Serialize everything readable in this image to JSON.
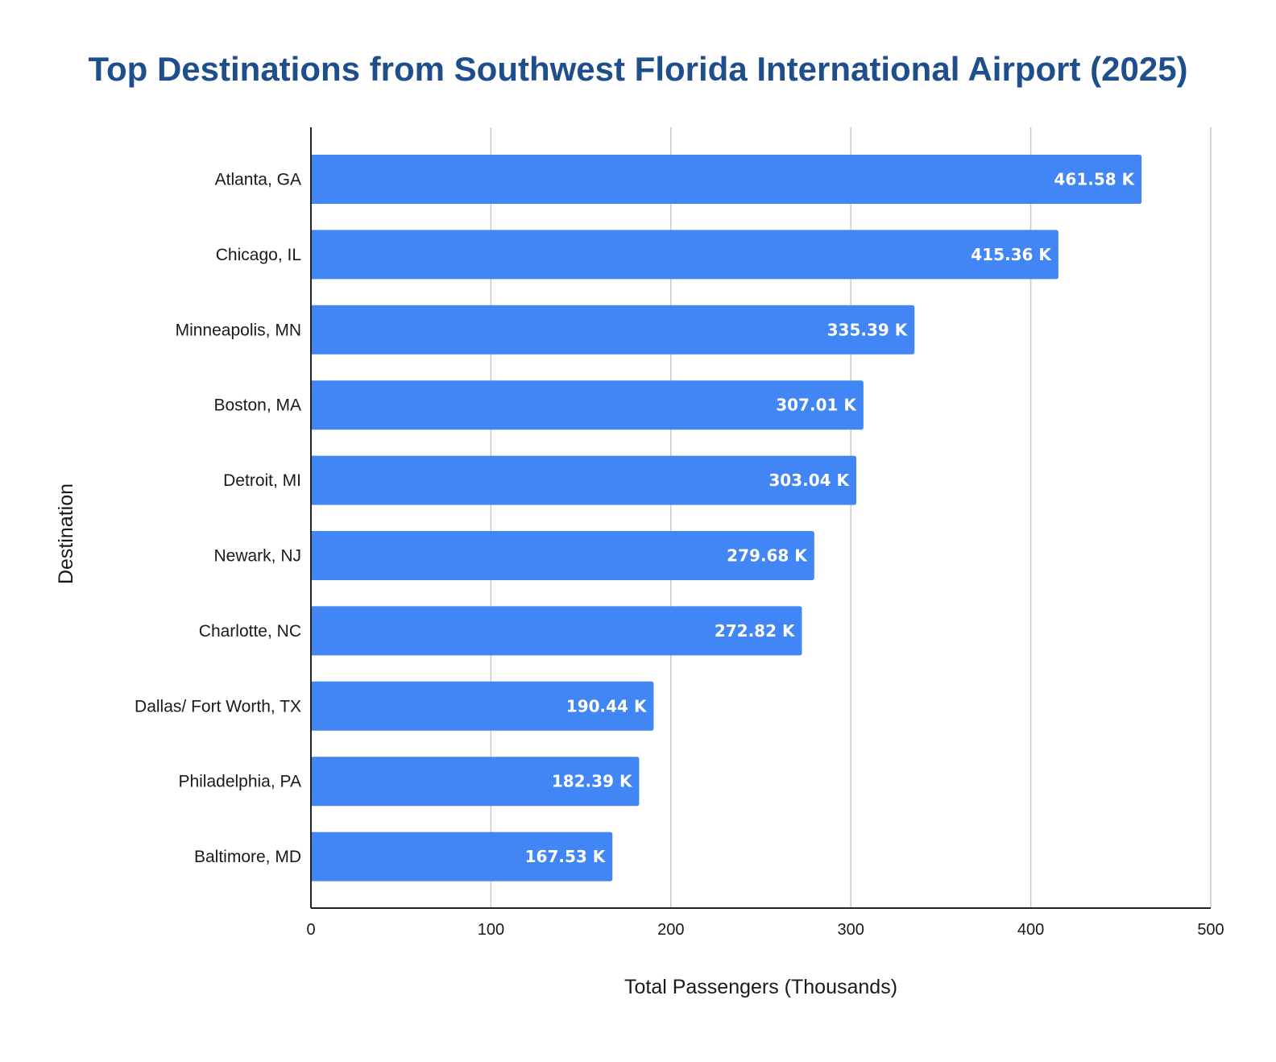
{
  "chart_data": {
    "type": "bar",
    "orientation": "horizontal",
    "title": "Top Destinations from Southwest Florida International Airport (2025)",
    "xlabel": "Total Passengers (Thousands)",
    "ylabel": "Destination",
    "xlim": [
      0,
      500
    ],
    "xticks": [
      0,
      100,
      200,
      300,
      400,
      500
    ],
    "grid": true,
    "legend": "none",
    "bar_color": "#4285f4",
    "title_color": "#1f4e8c",
    "categories": [
      "Atlanta, GA",
      "Chicago, IL",
      "Minneapolis, MN",
      "Boston, MA",
      "Detroit, MI",
      "Newark, NJ",
      "Charlotte, NC",
      "Dallas/ Fort Worth, TX",
      "Philadelphia, PA",
      "Baltimore, MD"
    ],
    "values": [
      461.58,
      415.36,
      335.39,
      307.01,
      303.04,
      279.68,
      272.82,
      190.44,
      182.39,
      167.53
    ],
    "data_labels": [
      "461.58 K",
      "415.36 K",
      "335.39 K",
      "307.01 K",
      "303.04 K",
      "279.68 K",
      "272.82 K",
      "190.44 K",
      "182.39 K",
      "167.53 K"
    ]
  }
}
